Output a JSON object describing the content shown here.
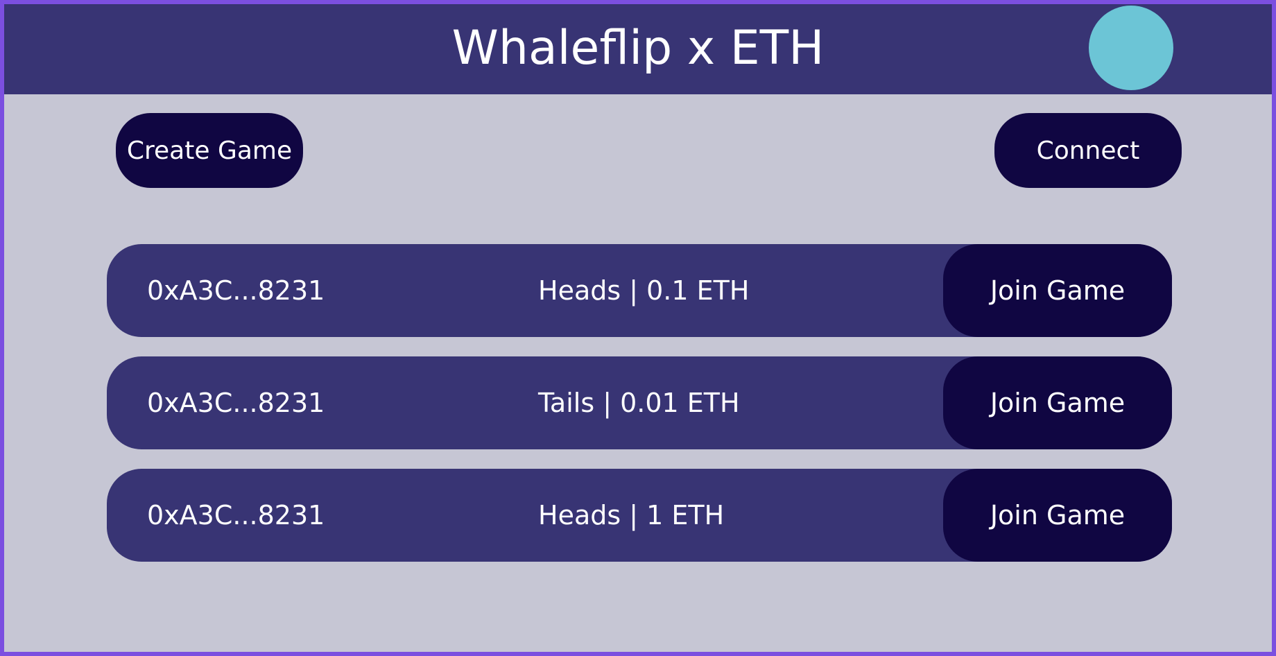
{
  "header": {
    "title": "Whaleflip x ETH"
  },
  "toolbar": {
    "create_label": "Create Game",
    "connect_label": "Connect"
  },
  "colors": {
    "page_background": "#c6c6d4",
    "frame_border": "#7b4fe0",
    "header_background": "#383474",
    "row_background": "#383474",
    "button_background": "#100642",
    "avatar": "#6cc5d6",
    "text": "#ffffff"
  },
  "games": [
    {
      "address": "0xA3C...8231",
      "bet": "Heads | 0.1 ETH",
      "action_label": "Join Game"
    },
    {
      "address": "0xA3C...8231",
      "bet": "Tails | 0.01 ETH",
      "action_label": "Join Game"
    },
    {
      "address": "0xA3C...8231",
      "bet": "Heads | 1 ETH",
      "action_label": "Join Game"
    }
  ]
}
